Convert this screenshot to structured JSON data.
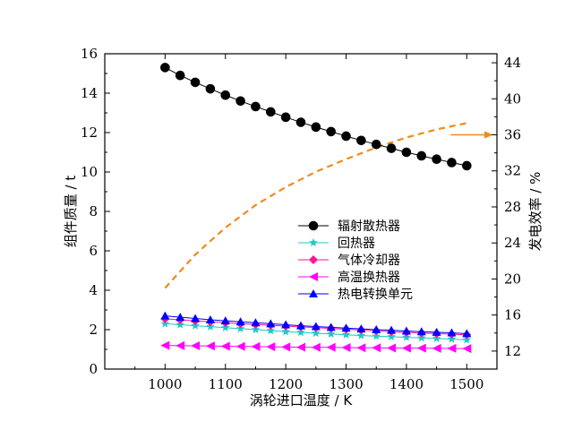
{
  "chart_data": {
    "type": "line",
    "xlabel": "涡轮进口温度 / K",
    "ylabel": "组件质量 / t",
    "y2label": "发电效率 / %",
    "xlim": [
      900,
      1550
    ],
    "ylim": [
      0,
      16
    ],
    "y2lim": [
      10,
      45
    ],
    "xticks": [
      1000,
      1100,
      1200,
      1300,
      1400,
      1500
    ],
    "yticks": [
      0,
      2,
      4,
      6,
      8,
      10,
      12,
      14,
      16
    ],
    "y2ticks": [
      12,
      16,
      20,
      24,
      28,
      32,
      36,
      40,
      44
    ],
    "x": [
      1000,
      1025,
      1050,
      1075,
      1100,
      1125,
      1150,
      1175,
      1200,
      1225,
      1250,
      1275,
      1300,
      1325,
      1350,
      1375,
      1400,
      1425,
      1450,
      1475,
      1500
    ],
    "legend_position": "center-right",
    "series": [
      {
        "name": "辐射散热器",
        "color": "#000000",
        "marker": "circle",
        "values": [
          15.3,
          14.9,
          14.55,
          14.22,
          13.9,
          13.6,
          13.32,
          13.05,
          12.78,
          12.52,
          12.28,
          12.05,
          11.82,
          11.6,
          11.4,
          11.2,
          11.0,
          10.82,
          10.65,
          10.48,
          10.32
        ]
      },
      {
        "name": "回热器",
        "color": "#1fc8c8",
        "marker": "star",
        "values": [
          2.3,
          2.25,
          2.2,
          2.15,
          2.1,
          2.05,
          2.0,
          1.95,
          1.9,
          1.86,
          1.82,
          1.78,
          1.74,
          1.7,
          1.67,
          1.64,
          1.61,
          1.58,
          1.55,
          1.52,
          1.48
        ]
      },
      {
        "name": "气体冷却器",
        "color": "#ff1493",
        "marker": "diamond",
        "values": [
          2.55,
          2.5,
          2.45,
          2.4,
          2.35,
          2.3,
          2.26,
          2.22,
          2.18,
          2.14,
          2.1,
          2.06,
          2.02,
          1.98,
          1.94,
          1.9,
          1.86,
          1.83,
          1.8,
          1.77,
          1.74
        ]
      },
      {
        "name": "高温换热器",
        "color": "#ff00ff",
        "marker": "triangle-left",
        "values": [
          1.2,
          1.19,
          1.18,
          1.17,
          1.16,
          1.15,
          1.14,
          1.13,
          1.12,
          1.11,
          1.1,
          1.1,
          1.09,
          1.08,
          1.08,
          1.07,
          1.06,
          1.06,
          1.05,
          1.05,
          1.04
        ]
      },
      {
        "name": "热电转换单元",
        "color": "#0000ff",
        "marker": "triangle-up",
        "values": [
          2.7,
          2.63,
          2.57,
          2.5,
          2.45,
          2.4,
          2.35,
          2.3,
          2.25,
          2.2,
          2.16,
          2.12,
          2.08,
          2.04,
          2.0,
          1.97,
          1.93,
          1.9,
          1.87,
          1.84,
          1.8
        ]
      }
    ],
    "efficiency": {
      "color": "#f08a1c",
      "style": "dashed",
      "axis": "right",
      "x": [
        1000,
        1050,
        1100,
        1150,
        1200,
        1250,
        1300,
        1350,
        1400,
        1450,
        1500
      ],
      "values": [
        19.0,
        22.7,
        25.7,
        28.2,
        30.2,
        31.9,
        33.3,
        34.6,
        35.7,
        36.6,
        37.3
      ],
      "arrow": "right"
    }
  }
}
